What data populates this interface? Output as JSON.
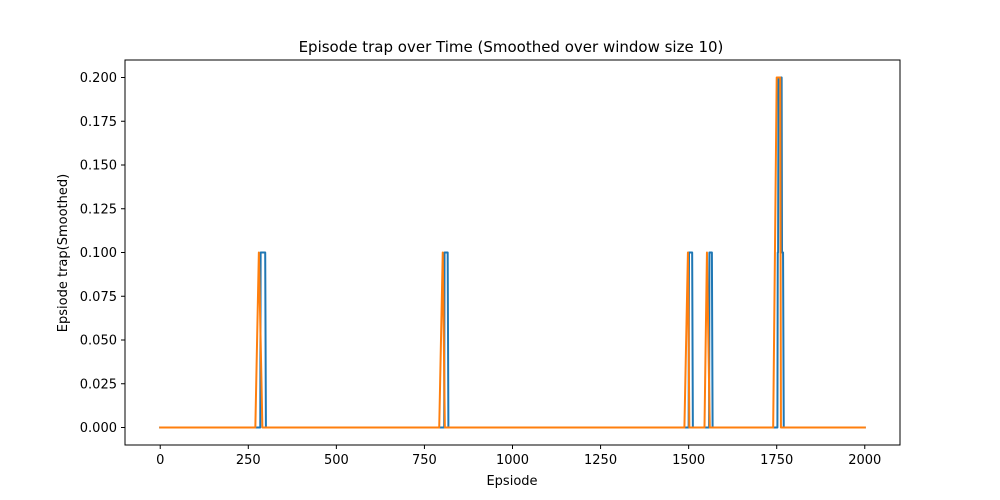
{
  "chart_data": {
    "type": "line",
    "title": "Episode trap over Time (Smoothed over window size 10)",
    "xlabel": "Epsiode",
    "ylabel": "Epsiode trap(Smoothed)",
    "xlim": [
      -100,
      2100
    ],
    "ylim": [
      -0.01,
      0.21
    ],
    "xticks": [
      0,
      250,
      500,
      750,
      1000,
      1250,
      1500,
      1750,
      2000
    ],
    "xtick_labels": [
      "0",
      "250",
      "500",
      "750",
      "1000",
      "1250",
      "1500",
      "1750",
      "2000"
    ],
    "yticks": [
      0.0,
      0.025,
      0.05,
      0.075,
      0.1,
      0.125,
      0.15,
      0.175,
      0.2
    ],
    "ytick_labels": [
      "0.000",
      "0.025",
      "0.050",
      "0.075",
      "0.100",
      "0.125",
      "0.150",
      "0.175",
      "0.200"
    ],
    "grid": false,
    "colors": {
      "series_blue": "#1f77b4",
      "series_orange": "#ff7f0e"
    },
    "series": [
      {
        "color": "#1f77b4",
        "x": [
          0,
          284,
          285,
          294,
          295,
          298,
          300,
          806,
          807,
          812,
          813,
          816,
          818,
          1500,
          1501,
          1510,
          1512,
          1558,
          1559,
          1566,
          1568,
          1752,
          1753,
          1754,
          1755,
          1764,
          1765,
          1768,
          1770,
          2000
        ],
        "y": [
          0,
          0,
          0.1,
          0.1,
          0.1,
          0.1,
          0,
          0,
          0.1,
          0.1,
          0.1,
          0.1,
          0,
          0,
          0.1,
          0.1,
          0,
          0,
          0.1,
          0.1,
          0,
          0,
          0.1,
          0.1,
          0.2,
          0.2,
          0.1,
          0.1,
          0,
          0
        ]
      },
      {
        "color": "#ff7f0e",
        "x": [
          0,
          270,
          280,
          290,
          792,
          802,
          808,
          1488,
          1498,
          1502,
          1545,
          1552,
          1560,
          1740,
          1745,
          1750,
          1752,
          1760,
          1762,
          2000
        ],
        "y": [
          0,
          0,
          0.1,
          0,
          0,
          0.1,
          0,
          0,
          0.1,
          0,
          0,
          0.1,
          0,
          0,
          0.1,
          0.2,
          0.2,
          0.2,
          0,
          0
        ]
      }
    ]
  }
}
